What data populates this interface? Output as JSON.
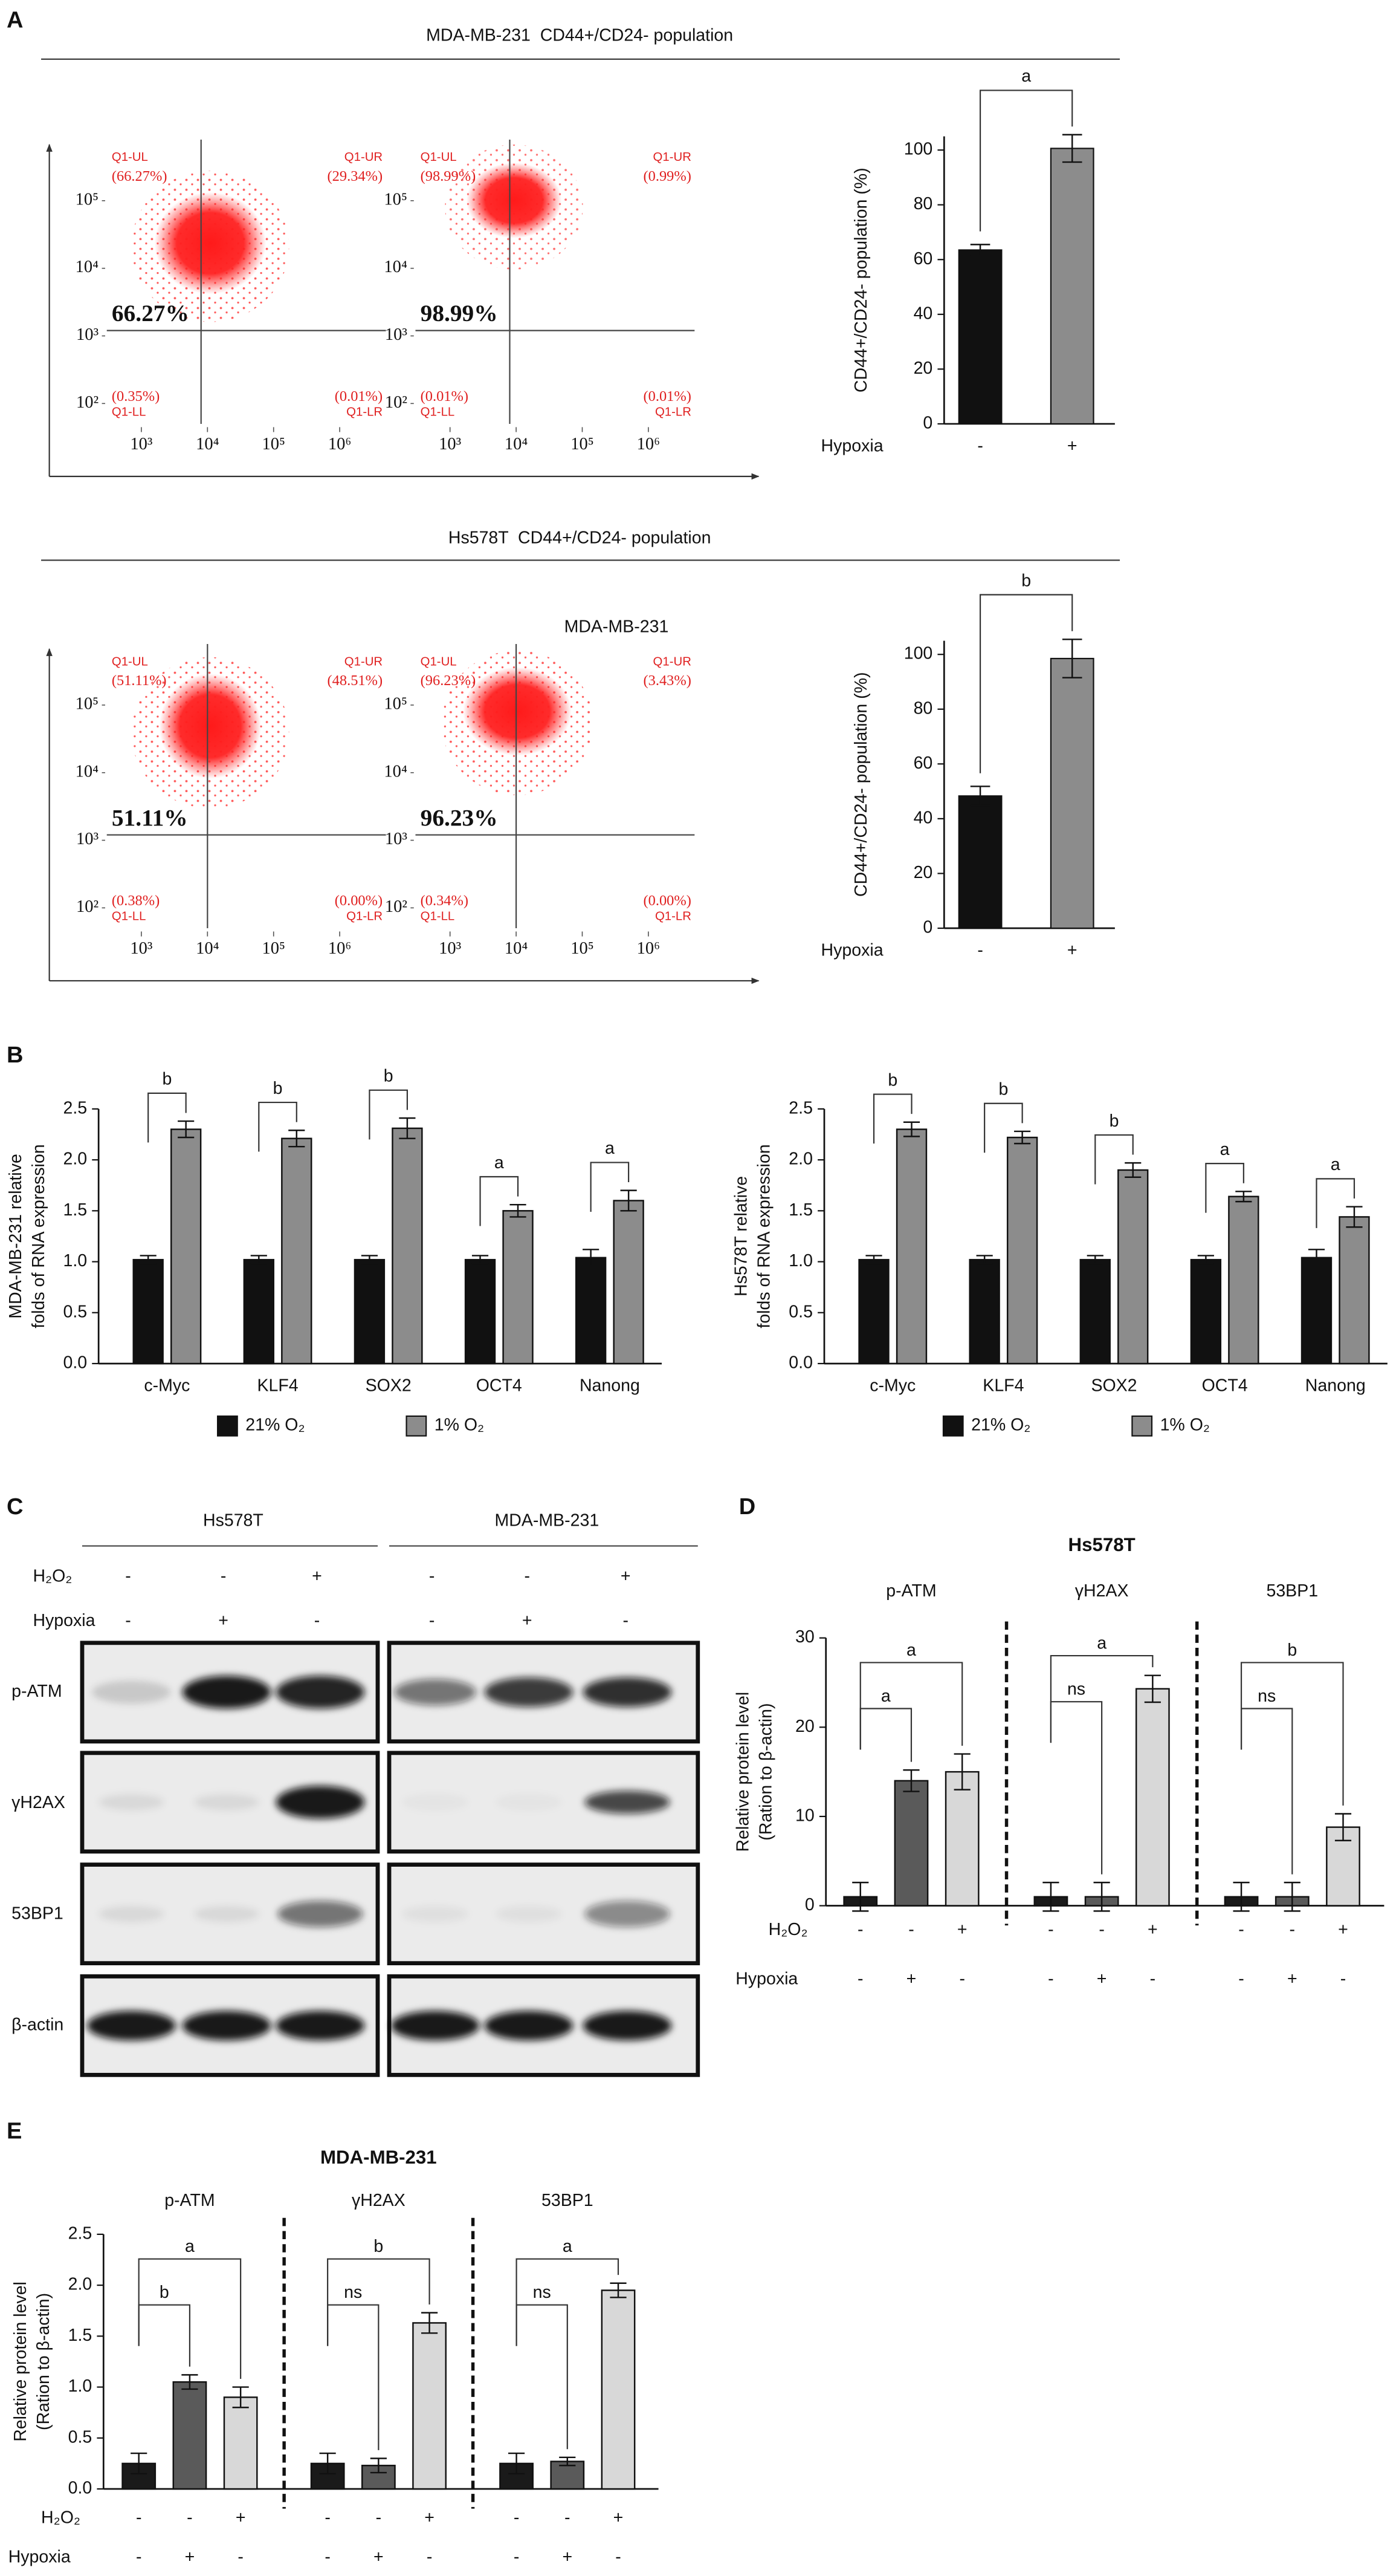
{
  "panel_labels": [
    "A",
    "B",
    "C",
    "D",
    "E"
  ],
  "section_titles": [
    "MDA-MB-231  CD44+/CD24- population",
    "Hs578T  CD44+/CD24- population"
  ],
  "western_blot": {
    "cell_lines": [
      "Hs578T",
      "MDA-MB-231"
    ],
    "treatments": [
      {
        "name": "H₂O₂",
        "signs": [
          "-",
          "-",
          "+"
        ]
      },
      {
        "name": "Hypoxia",
        "signs": [
          "-",
          "+",
          "-"
        ]
      }
    ],
    "proteins": [
      "p-ATM",
      "γH2AX",
      "53BP1",
      "β-actin"
    ]
  },
  "chart_data": [
    {
      "type": "flow_cytometry",
      "color": "#e02020",
      "xscale": "log",
      "yscale": "log",
      "xlim": [
        300,
        5000000
      ],
      "ylim": [
        50,
        800000
      ],
      "xticks": [
        {
          "value": 1000,
          "label": "10³"
        },
        {
          "value": 10000,
          "label": "10⁴"
        },
        {
          "value": 100000,
          "label": "10⁵"
        },
        {
          "value": 1000000,
          "label": "10⁶"
        }
      ],
      "yticks": [
        {
          "value": 100,
          "label": "10²"
        },
        {
          "value": 1000,
          "label": "10³"
        },
        {
          "value": 10000,
          "label": "10⁴"
        },
        {
          "value": 100000,
          "label": "10⁵"
        }
      ],
      "gate": [
        8000,
        1200
      ],
      "quadrant_names": [
        "Q1-UL",
        "Q1-UR",
        "Q1-LL",
        "Q1-LR"
      ],
      "values": [
        66.27,
        29.34,
        0.35,
        0.01
      ],
      "value_labels": [
        "(66.27%)",
        "(29.34%)",
        "(0.35%)",
        "(0.01%)"
      ],
      "highlight": {
        "value": 66.27,
        "label": "66.27%"
      }
    },
    {
      "type": "flow_cytometry",
      "color": "#e02020",
      "xscale": "log",
      "yscale": "log",
      "xlim": [
        300,
        5000000
      ],
      "ylim": [
        50,
        800000
      ],
      "xticks": [
        {
          "value": 1000,
          "label": "10³"
        },
        {
          "value": 10000,
          "label": "10⁴"
        },
        {
          "value": 100000,
          "label": "10⁵"
        },
        {
          "value": 1000000,
          "label": "10⁶"
        }
      ],
      "yticks": [
        {
          "value": 100,
          "label": "10²"
        },
        {
          "value": 1000,
          "label": "10³"
        },
        {
          "value": 10000,
          "label": "10⁴"
        },
        {
          "value": 100000,
          "label": "10⁵"
        }
      ],
      "gate": [
        8000,
        1200
      ],
      "quadrant_names": [
        "Q1-UL",
        "Q1-UR",
        "Q1-LL",
        "Q1-LR"
      ],
      "values": [
        98.99,
        0.99,
        0.01,
        0.01
      ],
      "value_labels": [
        "(98.99%)",
        "(0.99%)",
        "(0.01%)",
        "(0.01%)"
      ],
      "highlight": {
        "value": 98.99,
        "label": "98.99%"
      }
    },
    {
      "type": "bar",
      "ylabel": "CD44+/CD24- population (%)",
      "categories": [
        "-",
        "+"
      ],
      "category_axis_label": "Hypoxia",
      "values": [
        63.5,
        100.6
      ],
      "errors": [
        2,
        5
      ],
      "colors": [
        "#111111",
        "#8c8c8c"
      ],
      "ylim": [
        0,
        105
      ],
      "yticks": [
        0,
        20,
        40,
        60,
        80,
        100
      ],
      "significance": "a"
    },
    {
      "type": "flow_cytometry",
      "color": "#e02020",
      "xscale": "log",
      "yscale": "log",
      "xlim": [
        300,
        5000000
      ],
      "ylim": [
        50,
        800000
      ],
      "xticks": [
        {
          "value": 1000,
          "label": "10³"
        },
        {
          "value": 10000,
          "label": "10⁴"
        },
        {
          "value": 100000,
          "label": "10⁵"
        },
        {
          "value": 1000000,
          "label": "10⁶"
        }
      ],
      "yticks": [
        {
          "value": 100,
          "label": "10²"
        },
        {
          "value": 1000,
          "label": "10³"
        },
        {
          "value": 10000,
          "label": "10⁴"
        },
        {
          "value": 100000,
          "label": "10⁵"
        }
      ],
      "gate": [
        10000,
        1200
      ],
      "quadrant_names": [
        "Q1-UL",
        "Q1-UR",
        "Q1-LL",
        "Q1-LR"
      ],
      "values": [
        51.11,
        48.51,
        0.38,
        0.0
      ],
      "value_labels": [
        "(51.11%)",
        "(48.51%)",
        "(0.38%)",
        "(0.00%)"
      ],
      "highlight": {
        "value": 51.11,
        "label": "51.11%"
      }
    },
    {
      "type": "flow_cytometry",
      "title": "MDA-MB-231",
      "color": "#e02020",
      "xscale": "log",
      "yscale": "log",
      "xlim": [
        300,
        5000000
      ],
      "ylim": [
        50,
        800000
      ],
      "xticks": [
        {
          "value": 1000,
          "label": "10³"
        },
        {
          "value": 10000,
          "label": "10⁴"
        },
        {
          "value": 100000,
          "label": "10⁵"
        },
        {
          "value": 1000000,
          "label": "10⁶"
        }
      ],
      "yticks": [
        {
          "value": 100,
          "label": "10²"
        },
        {
          "value": 1000,
          "label": "10³"
        },
        {
          "value": 10000,
          "label": "10⁴"
        },
        {
          "value": 100000,
          "label": "10⁵"
        }
      ],
      "gate": [
        10000,
        1200
      ],
      "quadrant_names": [
        "Q1-UL",
        "Q1-UR",
        "Q1-LL",
        "Q1-LR"
      ],
      "values": [
        96.23,
        3.43,
        0.34,
        0.0
      ],
      "value_labels": [
        "(96.23%)",
        "(3.43%)",
        "(0.34%)",
        "(0.00%)"
      ],
      "highlight": {
        "value": 96.23,
        "label": "96.23%"
      }
    },
    {
      "type": "bar",
      "ylabel": "CD44+/CD24- population (%)",
      "categories": [
        "-",
        "+"
      ],
      "category_axis_label": "Hypoxia",
      "values": [
        48.3,
        98.5
      ],
      "errors": [
        3.5,
        7
      ],
      "colors": [
        "#111111",
        "#8c8c8c"
      ],
      "ylim": [
        0,
        105
      ],
      "yticks": [
        0,
        20,
        40,
        60,
        80,
        100
      ],
      "significance": "b"
    },
    {
      "type": "grouped_bar",
      "ylabel": [
        "MDA-MB-231 relative",
        "folds of RNA expression"
      ],
      "categories": [
        "c-Myc",
        "KLF4",
        "SOX2",
        "OCT4",
        "Nanong"
      ],
      "series": [
        {
          "name": "21% O₂",
          "color": "#111111",
          "values": [
            1.02,
            1.02,
            1.02,
            1.02,
            1.04
          ],
          "errors": [
            0.04,
            0.04,
            0.04,
            0.04,
            0.08
          ]
        },
        {
          "name": "1% O₂",
          "color": "#8c8c8c",
          "values": [
            2.3,
            2.21,
            2.31,
            1.5,
            1.6
          ],
          "errors": [
            0.08,
            0.08,
            0.1,
            0.06,
            0.1
          ]
        }
      ],
      "ylim": [
        0,
        2.5
      ],
      "yticks": [
        {
          "value": 0,
          "label": "0.0"
        },
        0.5,
        {
          "value": 1,
          "label": "1.0"
        },
        1.5,
        {
          "value": 2,
          "label": "2.0"
        },
        2.5
      ],
      "significance": [
        "b",
        "b",
        "b",
        "a",
        "a"
      ],
      "legend": "bottom"
    },
    {
      "type": "grouped_bar",
      "ylabel": [
        "Hs578T relative",
        "folds of RNA expression"
      ],
      "categories": [
        "c-Myc",
        "KLF4",
        "SOX2",
        "OCT4",
        "Nanong"
      ],
      "series": [
        {
          "name": "21% O₂",
          "color": "#111111",
          "values": [
            1.02,
            1.02,
            1.02,
            1.02,
            1.04
          ],
          "errors": [
            0.04,
            0.04,
            0.04,
            0.04,
            0.08
          ]
        },
        {
          "name": "1% O₂",
          "color": "#8c8c8c",
          "values": [
            2.3,
            2.22,
            1.9,
            1.64,
            1.44
          ],
          "errors": [
            0.07,
            0.06,
            0.07,
            0.05,
            0.1
          ]
        }
      ],
      "ylim": [
        0,
        2.5
      ],
      "yticks": [
        {
          "value": 0,
          "label": "0.0"
        },
        0.5,
        {
          "value": 1,
          "label": "1.0"
        },
        1.5,
        {
          "value": 2,
          "label": "2.0"
        },
        2.5
      ],
      "significance": [
        "b",
        "b",
        "b",
        "a",
        "a"
      ],
      "legend": "bottom"
    },
    {
      "type": "grouped_bar",
      "title": "Hs578T",
      "ylabel": [
        "Relative protein level",
        "(Ration to β-actin)"
      ],
      "categories": [
        "p-ATM",
        "γH2AX",
        "53BP1"
      ],
      "series": [
        {
          "color": "#1a1a1a",
          "values": [
            1,
            1,
            1
          ],
          "errors": [
            1.6,
            1.6,
            1.6
          ]
        },
        {
          "color": "#5a5a5a",
          "values": [
            14,
            1,
            1
          ],
          "errors": [
            1.2,
            1.6,
            1.6
          ]
        },
        {
          "color": "#d8d8d8",
          "values": [
            15,
            24.3,
            8.8
          ],
          "errors": [
            2,
            1.5,
            1.5
          ]
        }
      ],
      "ylim": [
        0,
        30
      ],
      "yticks": [
        0,
        10,
        20,
        30
      ],
      "significance": [
        [
          "a",
          "a"
        ],
        [
          "ns",
          "a"
        ],
        [
          "ns",
          "b"
        ]
      ],
      "separators": "dashed",
      "treatments": [
        {
          "name": "H₂O₂",
          "signs": [
            "-",
            "-",
            "+"
          ]
        },
        {
          "name": "Hypoxia",
          "signs": [
            "-",
            "+",
            "-"
          ]
        }
      ]
    },
    {
      "type": "grouped_bar",
      "title": "MDA-MB-231",
      "ylabel": [
        "Relative protein level",
        "(Ration to β-actin)"
      ],
      "categories": [
        "p-ATM",
        "γH2AX",
        "53BP1"
      ],
      "series": [
        {
          "color": "#1a1a1a",
          "values": [
            0.25,
            0.25,
            0.25
          ],
          "errors": [
            0.1,
            0.1,
            0.1
          ]
        },
        {
          "color": "#5a5a5a",
          "values": [
            1.05,
            0.23,
            0.27
          ],
          "errors": [
            0.07,
            0.07,
            0.04
          ]
        },
        {
          "color": "#d8d8d8",
          "values": [
            0.9,
            1.63,
            1.95
          ],
          "errors": [
            0.1,
            0.1,
            0.07
          ]
        }
      ],
      "ylim": [
        0,
        2.5
      ],
      "yticks": [
        {
          "value": 0,
          "label": "0.0"
        },
        0.5,
        {
          "value": 1,
          "label": "1.0"
        },
        1.5,
        {
          "value": 2,
          "label": "2.0"
        },
        2.5
      ],
      "significance": [
        [
          "b",
          "a"
        ],
        [
          "ns",
          "b"
        ],
        [
          "ns",
          "a"
        ]
      ],
      "separators": "dashed",
      "treatments": [
        {
          "name": "H₂O₂",
          "signs": [
            "-",
            "-",
            "+"
          ]
        },
        {
          "name": "Hypoxia",
          "signs": [
            "-",
            "+",
            "-"
          ]
        }
      ]
    }
  ]
}
